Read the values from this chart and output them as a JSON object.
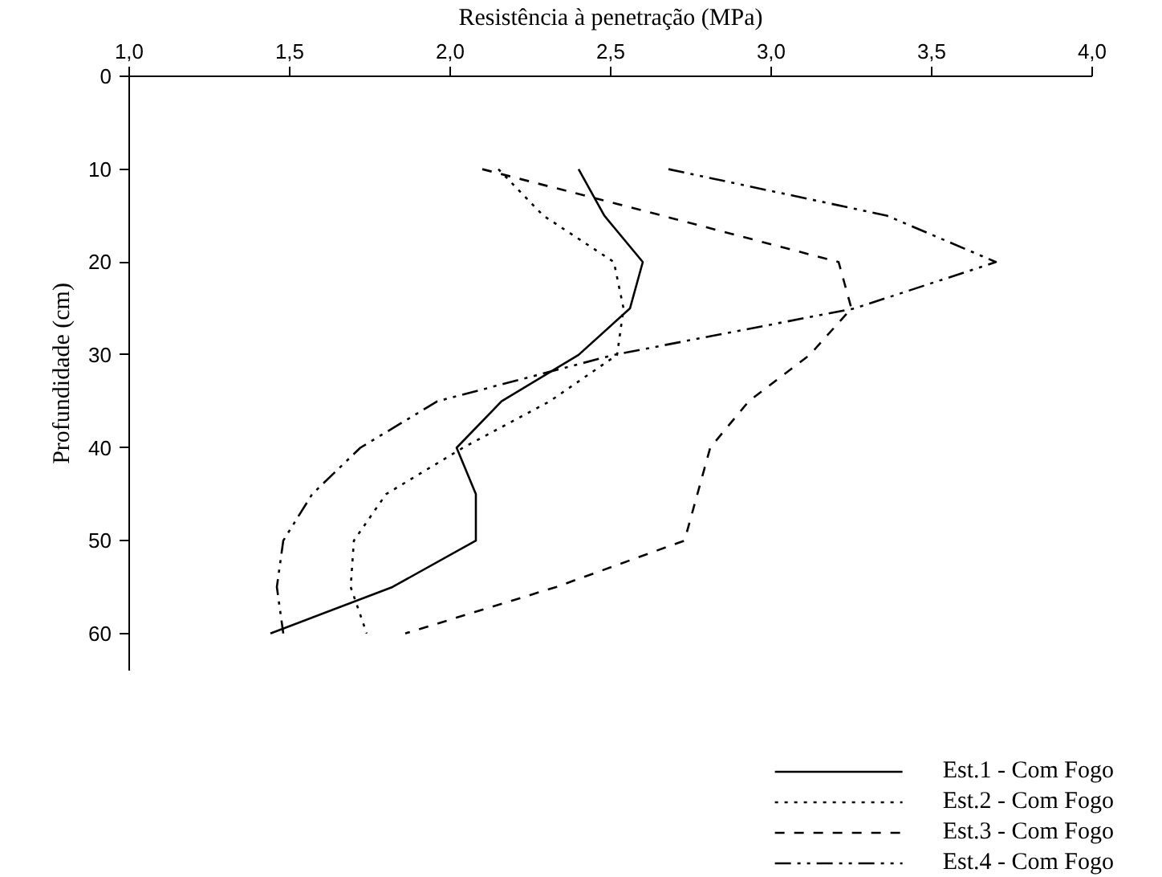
{
  "chart_data": {
    "type": "line",
    "xlabel": "Resistência à penetração (MPa)",
    "ylabel": "Profundidade (cm)",
    "xlim": [
      1,
      4
    ],
    "xticks": [
      {
        "value": 1,
        "label": "1,0"
      },
      {
        "value": 1.5,
        "label": "1,5"
      },
      {
        "value": 2,
        "label": "2,0"
      },
      {
        "value": 2.5,
        "label": "2,5"
      },
      {
        "value": 3,
        "label": "3,0"
      },
      {
        "value": 3.5,
        "label": "3,5"
      },
      {
        "value": 4,
        "label": "4,0"
      }
    ],
    "ylim": [
      64,
      0
    ],
    "yticks": [
      0,
      10,
      20,
      30,
      40,
      50,
      60
    ],
    "grid": false,
    "legend": "bottom right",
    "marker": "none",
    "series": [
      {
        "name": "Est.1 - Com Fogo",
        "color": "#000000",
        "line_style": "solid",
        "x": [
          2.4,
          2.48,
          2.6,
          2.56,
          2.4,
          2.16,
          2.02,
          2.08,
          2.08,
          1.82,
          1.44
        ],
        "values": [
          10,
          15,
          20,
          25,
          30,
          35,
          40,
          45,
          50,
          55,
          60
        ]
      },
      {
        "name": "Est.2 - Com Fogo",
        "color": "#000000",
        "line_style": "dotted",
        "x": [
          2.15,
          2.29,
          2.51,
          2.54,
          2.52,
          2.31,
          2.04,
          1.8,
          1.7,
          1.69,
          1.74
        ],
        "values": [
          10,
          15,
          20,
          25,
          30,
          35,
          40,
          45,
          50,
          55,
          60
        ]
      },
      {
        "name": "Est.3 - Com Fogo",
        "color": "#000000",
        "line_style": "dashed",
        "x": [
          2.1,
          2.66,
          3.21,
          3.25,
          3.12,
          2.93,
          2.81,
          2.77,
          2.73,
          2.33,
          1.86
        ],
        "values": [
          10,
          15,
          20,
          25,
          30,
          35,
          40,
          45,
          50,
          55,
          60
        ]
      },
      {
        "name": "Est.4 - Com Fogo",
        "color": "#000000",
        "line_style": "dashdotdot",
        "x": [
          2.68,
          3.36,
          3.7,
          3.26,
          2.51,
          1.96,
          1.72,
          1.57,
          1.48,
          1.46,
          1.48
        ],
        "values": [
          10,
          15,
          20,
          25,
          30,
          35,
          40,
          45,
          50,
          55,
          60
        ]
      }
    ]
  }
}
